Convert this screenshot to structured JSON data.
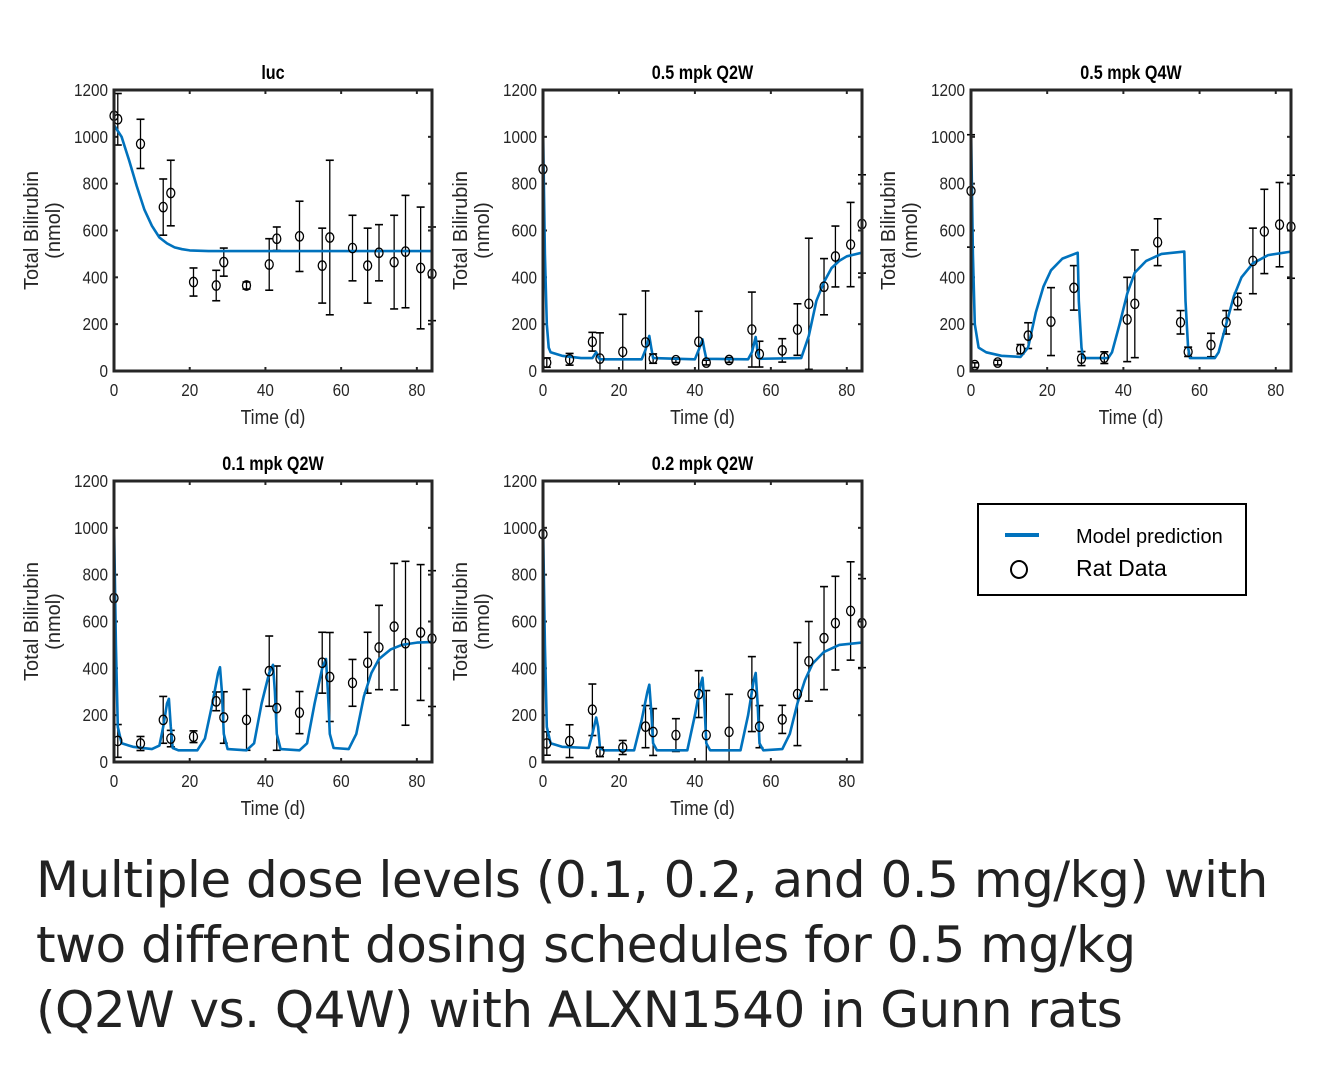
{
  "caption": {
    "line1": "Multiple dose levels (0.1, 0.2, and 0.5 mg/kg) with",
    "line2": "two different dosing schedules for 0.5 mg/kg",
    "line3": "(Q2W vs. Q4W) with ALXN1540 in Gunn rats"
  },
  "legend": {
    "model": "Model prediction",
    "data": "Rat Data"
  },
  "colors": {
    "model": "#0072bd",
    "data": "#000000"
  },
  "chart_data": [
    {
      "type": "line",
      "title": "luc",
      "xlabel": "Time (d)",
      "ylabel": [
        "Total Bilirubin",
        "(nmol)"
      ],
      "xlim": [
        0,
        84
      ],
      "ylim": [
        0,
        1200
      ],
      "xticks": [
        0,
        20,
        40,
        60,
        80
      ],
      "yticks": [
        0,
        200,
        400,
        600,
        800,
        1000,
        1200
      ],
      "model": [
        [
          0,
          1050
        ],
        [
          2,
          1000
        ],
        [
          4,
          900
        ],
        [
          6,
          790
        ],
        [
          8,
          690
        ],
        [
          10,
          620
        ],
        [
          12,
          570
        ],
        [
          14,
          545
        ],
        [
          16,
          528
        ],
        [
          18,
          520
        ],
        [
          20,
          515
        ],
        [
          25,
          512
        ],
        [
          84,
          512
        ]
      ],
      "data": [
        [
          0,
          1090,
          0
        ],
        [
          1,
          1075,
          110
        ],
        [
          7,
          970,
          105
        ],
        [
          13,
          700,
          120
        ],
        [
          15,
          760,
          140
        ],
        [
          21,
          380,
          60
        ],
        [
          27,
          365,
          65
        ],
        [
          29,
          465,
          60
        ],
        [
          35,
          365,
          15
        ],
        [
          41,
          455,
          110
        ],
        [
          43,
          565,
          50
        ],
        [
          49,
          575,
          150
        ],
        [
          55,
          450,
          160
        ],
        [
          57,
          570,
          330
        ],
        [
          63,
          525,
          140
        ],
        [
          67,
          450,
          160
        ],
        [
          70,
          505,
          120
        ],
        [
          74,
          465,
          200
        ],
        [
          77,
          510,
          240
        ],
        [
          81,
          440,
          260
        ],
        [
          84,
          415,
          200
        ]
      ]
    },
    {
      "type": "line",
      "title": "0.5 mpk Q2W",
      "xlabel": "Time (d)",
      "ylabel": [
        "Total Bilirubin",
        "(nmol)"
      ],
      "xlim": [
        0,
        84
      ],
      "ylim": [
        0,
        1200
      ],
      "xticks": [
        0,
        20,
        40,
        60,
        80
      ],
      "yticks": [
        0,
        200,
        400,
        600,
        800,
        1000,
        1200
      ],
      "model": [
        [
          0,
          1050
        ],
        [
          0.5,
          500
        ],
        [
          1,
          200
        ],
        [
          1.5,
          100
        ],
        [
          2,
          80
        ],
        [
          5,
          65
        ],
        [
          10,
          55
        ],
        [
          13,
          55
        ],
        [
          14,
          80
        ],
        [
          14.5,
          60
        ],
        [
          15,
          50
        ],
        [
          26,
          50
        ],
        [
          27,
          90
        ],
        [
          28,
          150
        ],
        [
          28.5,
          100
        ],
        [
          29,
          55
        ],
        [
          40,
          50
        ],
        [
          41,
          90
        ],
        [
          42,
          135
        ],
        [
          42.5,
          90
        ],
        [
          43,
          52
        ],
        [
          54,
          50
        ],
        [
          55,
          80
        ],
        [
          56,
          145
        ],
        [
          56.5,
          80
        ],
        [
          57,
          52
        ],
        [
          68,
          55
        ],
        [
          70,
          150
        ],
        [
          72,
          300
        ],
        [
          74,
          380
        ],
        [
          76,
          440
        ],
        [
          78,
          470
        ],
        [
          80,
          490
        ],
        [
          84,
          505
        ]
      ],
      "data": [
        [
          0,
          862,
          0
        ],
        [
          1,
          36,
          20
        ],
        [
          7,
          50,
          25
        ],
        [
          13,
          125,
          40
        ],
        [
          15,
          53,
          110
        ],
        [
          21,
          82,
          160
        ],
        [
          27,
          122,
          220
        ],
        [
          29,
          53,
          20
        ],
        [
          35,
          46,
          10
        ],
        [
          41,
          125,
          130
        ],
        [
          43,
          36,
          10
        ],
        [
          49,
          47,
          10
        ],
        [
          55,
          177,
          160
        ],
        [
          57,
          72,
          55
        ],
        [
          63,
          88,
          50
        ],
        [
          67,
          177,
          110
        ],
        [
          70,
          287,
          280
        ],
        [
          74,
          360,
          120
        ],
        [
          77,
          489,
          130
        ],
        [
          81,
          540,
          180
        ],
        [
          84,
          628,
          210
        ]
      ]
    },
    {
      "type": "line",
      "title": "0.5 mpk Q4W",
      "xlabel": "Time (d)",
      "ylabel": [
        "Total Bilirubin",
        "(nmol)"
      ],
      "xlim": [
        0,
        84
      ],
      "ylim": [
        0,
        1200
      ],
      "xticks": [
        0,
        20,
        40,
        60,
        80
      ],
      "yticks": [
        0,
        200,
        400,
        600,
        800,
        1000,
        1200
      ],
      "model": [
        [
          0,
          1050
        ],
        [
          0.5,
          500
        ],
        [
          1,
          200
        ],
        [
          2,
          100
        ],
        [
          4,
          80
        ],
        [
          8,
          65
        ],
        [
          13,
          60
        ],
        [
          15,
          100
        ],
        [
          17,
          250
        ],
        [
          19,
          360
        ],
        [
          21,
          430
        ],
        [
          24,
          480
        ],
        [
          28,
          505
        ],
        [
          28.3,
          300
        ],
        [
          29,
          100
        ],
        [
          29.5,
          55
        ],
        [
          36,
          55
        ],
        [
          37,
          80
        ],
        [
          39,
          200
        ],
        [
          41,
          330
        ],
        [
          43,
          420
        ],
        [
          46,
          470
        ],
        [
          50,
          500
        ],
        [
          56,
          510
        ],
        [
          56.3,
          300
        ],
        [
          57,
          100
        ],
        [
          57.5,
          55
        ],
        [
          64,
          55
        ],
        [
          65,
          80
        ],
        [
          67,
          200
        ],
        [
          69,
          320
        ],
        [
          71,
          400
        ],
        [
          74,
          460
        ],
        [
          78,
          495
        ],
        [
          84,
          510
        ]
      ],
      "data": [
        [
          0,
          769,
          240
        ],
        [
          1,
          25,
          10
        ],
        [
          7,
          36,
          10
        ],
        [
          13,
          93,
          20
        ],
        [
          15,
          151,
          55
        ],
        [
          21,
          211,
          145
        ],
        [
          27,
          355,
          95
        ],
        [
          29,
          53,
          30
        ],
        [
          35,
          57,
          25
        ],
        [
          41,
          220,
          180
        ],
        [
          43,
          287,
          230
        ],
        [
          49,
          550,
          100
        ],
        [
          55,
          208,
          50
        ],
        [
          57,
          82,
          20
        ],
        [
          63,
          111,
          50
        ],
        [
          67,
          208,
          50
        ],
        [
          70,
          297,
          35
        ],
        [
          74,
          470,
          140
        ],
        [
          77,
          596,
          180
        ],
        [
          81,
          625,
          180
        ],
        [
          84,
          616,
          220
        ]
      ]
    },
    {
      "type": "line",
      "title": "0.1 mpk Q2W",
      "xlabel": "Time (d)",
      "ylabel": [
        "Total Bilirubin",
        "(nmol)"
      ],
      "xlim": [
        0,
        84
      ],
      "ylim": [
        0,
        1200
      ],
      "xticks": [
        0,
        20,
        40,
        60,
        80
      ],
      "yticks": [
        0,
        200,
        400,
        600,
        800,
        1000,
        1200
      ],
      "model": [
        [
          0,
          1030
        ],
        [
          0.5,
          500
        ],
        [
          1,
          150
        ],
        [
          2,
          80
        ],
        [
          5,
          65
        ],
        [
          10,
          55
        ],
        [
          12,
          70
        ],
        [
          13,
          150
        ],
        [
          14,
          250
        ],
        [
          14.5,
          270
        ],
        [
          15,
          150
        ],
        [
          15.5,
          60
        ],
        [
          17,
          50
        ],
        [
          22,
          50
        ],
        [
          24,
          100
        ],
        [
          26,
          250
        ],
        [
          27.5,
          380
        ],
        [
          28,
          405
        ],
        [
          28.5,
          300
        ],
        [
          29,
          120
        ],
        [
          30,
          55
        ],
        [
          35,
          50
        ],
        [
          37,
          80
        ],
        [
          39,
          250
        ],
        [
          41,
          380
        ],
        [
          42,
          415
        ],
        [
          42.5,
          300
        ],
        [
          43,
          120
        ],
        [
          44,
          55
        ],
        [
          49,
          50
        ],
        [
          51,
          80
        ],
        [
          53,
          250
        ],
        [
          55,
          400
        ],
        [
          56,
          440
        ],
        [
          56.5,
          300
        ],
        [
          57,
          120
        ],
        [
          58,
          60
        ],
        [
          62,
          55
        ],
        [
          64,
          120
        ],
        [
          66,
          280
        ],
        [
          68,
          380
        ],
        [
          70,
          440
        ],
        [
          73,
          480
        ],
        [
          76,
          500
        ],
        [
          80,
          510
        ],
        [
          84,
          512
        ]
      ],
      "data": [
        [
          0,
          700,
          0
        ],
        [
          1,
          90,
          70
        ],
        [
          7,
          79,
          30
        ],
        [
          13,
          180,
          100
        ],
        [
          15,
          100,
          35
        ],
        [
          21,
          108,
          25
        ],
        [
          27,
          259,
          40
        ],
        [
          29,
          190,
          110
        ],
        [
          35,
          180,
          130
        ],
        [
          41,
          388,
          150
        ],
        [
          43,
          230,
          180
        ],
        [
          49,
          211,
          90
        ],
        [
          55,
          424,
          130
        ],
        [
          57,
          363,
          190
        ],
        [
          63,
          338,
          100
        ],
        [
          67,
          424,
          130
        ],
        [
          70,
          489,
          180
        ],
        [
          74,
          578,
          270
        ],
        [
          77,
          507,
          350
        ],
        [
          81,
          553,
          290
        ],
        [
          84,
          527,
          290
        ]
      ]
    },
    {
      "type": "line",
      "title": "0.2 mpk Q2W",
      "xlabel": "Time (d)",
      "ylabel": [
        "Total Bilirubin",
        "(nmol)"
      ],
      "xlim": [
        0,
        84
      ],
      "ylim": [
        0,
        1200
      ],
      "xticks": [
        0,
        20,
        40,
        60,
        80
      ],
      "yticks": [
        0,
        200,
        400,
        600,
        800,
        1000,
        1200
      ],
      "model": [
        [
          0,
          1030
        ],
        [
          0.5,
          500
        ],
        [
          1,
          150
        ],
        [
          2,
          80
        ],
        [
          5,
          65
        ],
        [
          12,
          60
        ],
        [
          13,
          120
        ],
        [
          14,
          190
        ],
        [
          14.5,
          150
        ],
        [
          15,
          60
        ],
        [
          16,
          50
        ],
        [
          24,
          50
        ],
        [
          26,
          180
        ],
        [
          27.5,
          300
        ],
        [
          28,
          330
        ],
        [
          28.5,
          220
        ],
        [
          29,
          80
        ],
        [
          30,
          50
        ],
        [
          38,
          50
        ],
        [
          40,
          200
        ],
        [
          41.5,
          330
        ],
        [
          42,
          360
        ],
        [
          42.5,
          250
        ],
        [
          43,
          80
        ],
        [
          44,
          50
        ],
        [
          52,
          50
        ],
        [
          54,
          200
        ],
        [
          55.5,
          350
        ],
        [
          56,
          380
        ],
        [
          56.5,
          250
        ],
        [
          57,
          80
        ],
        [
          58,
          50
        ],
        [
          63,
          55
        ],
        [
          65,
          120
        ],
        [
          67,
          250
        ],
        [
          69,
          350
        ],
        [
          71,
          420
        ],
        [
          74,
          470
        ],
        [
          78,
          500
        ],
        [
          84,
          510
        ]
      ],
      "data": [
        [
          0,
          973,
          0
        ],
        [
          1,
          79,
          50
        ],
        [
          7,
          89,
          70
        ],
        [
          13,
          223,
          110
        ],
        [
          15,
          43,
          20
        ],
        [
          21,
          62,
          30
        ],
        [
          27,
          151,
          90
        ],
        [
          29,
          128,
          100
        ],
        [
          35,
          115,
          70
        ],
        [
          41,
          290,
          100
        ],
        [
          43,
          115,
          190
        ],
        [
          49,
          129,
          160
        ],
        [
          55,
          290,
          160
        ],
        [
          57,
          151,
          90
        ],
        [
          63,
          182,
          60
        ],
        [
          67,
          290,
          220
        ],
        [
          70,
          430,
          170
        ],
        [
          74,
          529,
          220
        ],
        [
          77,
          593,
          200
        ],
        [
          81,
          645,
          210
        ],
        [
          84,
          593,
          190
        ]
      ]
    }
  ]
}
